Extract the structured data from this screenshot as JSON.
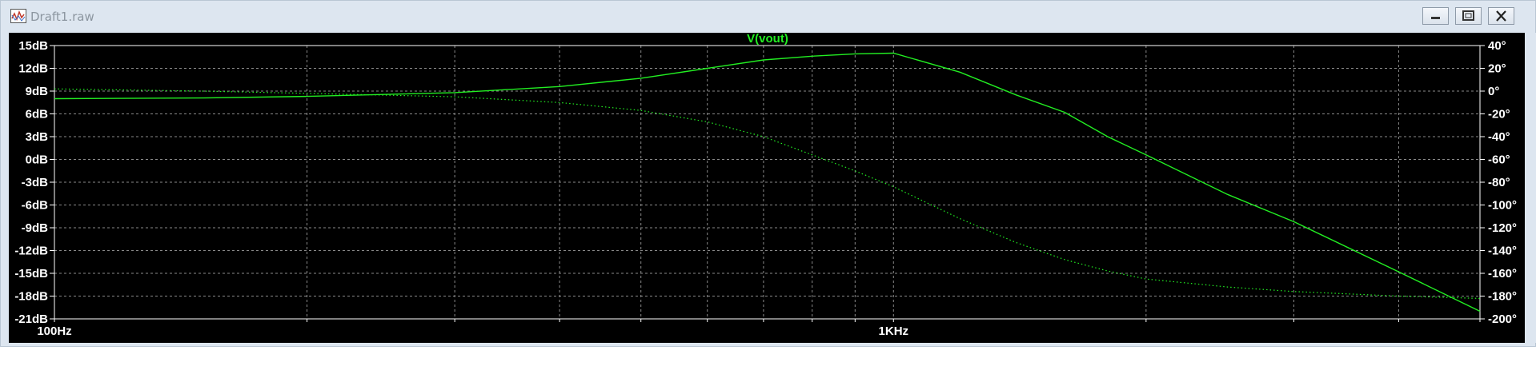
{
  "window": {
    "title": "Draft1.raw",
    "icons": {
      "app": "waveform-app-icon",
      "minimize": "minimize-icon",
      "maximize": "maximize-icon",
      "close": "close-icon"
    }
  },
  "colors": {
    "trace": "#22ee22",
    "grid": "#8a8a8a",
    "axis_text": "#ffffff",
    "background": "#000000"
  },
  "chart_data": {
    "type": "line",
    "title": "V(vout)",
    "x_scale": "log",
    "x_range": [
      100,
      5000
    ],
    "x_major_ticks": [
      100,
      1000
    ],
    "x_tick_labels": [
      "100Hz",
      "1KHz"
    ],
    "y_left": {
      "range": [
        -21,
        15
      ],
      "ticks": [
        15,
        12,
        9,
        6,
        3,
        0,
        -3,
        -6,
        -9,
        -12,
        -15,
        -18,
        -21
      ],
      "tick_labels": [
        "15dB",
        "12dB",
        "9dB",
        "6dB",
        "3dB",
        "0dB",
        "-3dB",
        "-6dB",
        "-9dB",
        "-12dB",
        "-15dB",
        "-18dB",
        "-21dB"
      ]
    },
    "y_right": {
      "range": [
        -200,
        40
      ],
      "ticks": [
        40,
        20,
        0,
        -20,
        -40,
        -60,
        -80,
        -100,
        -120,
        -140,
        -160,
        -180,
        -200
      ],
      "tick_labels": [
        "40°",
        "20°",
        "0°",
        "-20°",
        "-40°",
        "-60°",
        "-80°",
        "-100°",
        "-120°",
        "-140°",
        "-160°",
        "-180°",
        "-200°"
      ]
    },
    "grid": true,
    "series": [
      {
        "name": "V(vout)",
        "style": "solid",
        "axis": "left",
        "x": [
          100,
          150,
          200,
          300,
          400,
          500,
          600,
          700,
          800,
          900,
          1000,
          1200,
          1400,
          1600,
          1800,
          2000,
          2500,
          3000,
          4000,
          5000
        ],
        "y": [
          8.0,
          8.1,
          8.3,
          8.8,
          9.6,
          10.7,
          12.0,
          13.1,
          13.6,
          13.9,
          14.0,
          11.5,
          8.5,
          6.2,
          3.0,
          0.6,
          -4.6,
          -8.2,
          -14.8,
          -20.0
        ]
      },
      {
        "name": "V(vout) phase",
        "style": "dotted",
        "axis": "right",
        "x": [
          100,
          150,
          200,
          300,
          400,
          500,
          600,
          700,
          800,
          900,
          1000,
          1200,
          1400,
          1600,
          1800,
          2000,
          2500,
          3000,
          4000,
          5000
        ],
        "y": [
          2,
          0,
          -2,
          -5,
          -10,
          -17,
          -27,
          -40,
          -56,
          -70,
          -84,
          -112,
          -133,
          -148,
          -158,
          -165,
          -172,
          -176,
          -180,
          -182
        ]
      }
    ]
  }
}
